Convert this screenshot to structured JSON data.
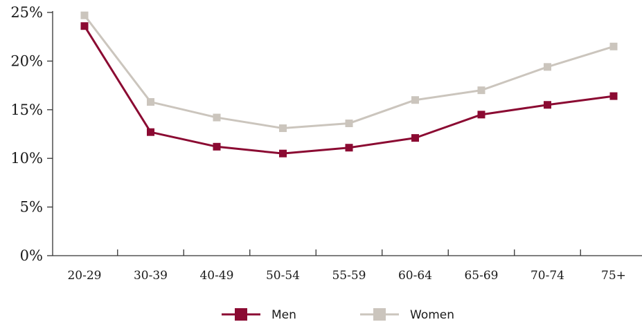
{
  "chart_data": {
    "type": "line",
    "title": "",
    "xlabel": "",
    "ylabel": "",
    "categories": [
      "20-29",
      "30-39",
      "40-49",
      "50-54",
      "55-59",
      "60-64",
      "65-69",
      "70-74",
      "75+"
    ],
    "y_ticks": [
      "0%",
      "5%",
      "10%",
      "15%",
      "20%",
      "25%"
    ],
    "ylim": [
      0,
      25
    ],
    "grid": false,
    "legend_position": "bottom",
    "series": [
      {
        "name": "Men",
        "color": "#8b0a32",
        "marker": "square",
        "values": [
          23.6,
          12.7,
          11.2,
          10.5,
          11.1,
          12.1,
          14.5,
          15.5,
          16.4
        ]
      },
      {
        "name": "Women",
        "color": "#cbc5bd",
        "marker": "square",
        "values": [
          24.7,
          15.8,
          14.2,
          13.1,
          13.6,
          16.0,
          17.0,
          19.4,
          21.5
        ]
      }
    ]
  }
}
